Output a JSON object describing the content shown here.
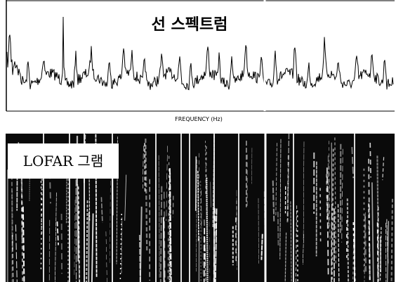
{
  "top_panel": {
    "title": "선 스펙트럼",
    "axis_label": "FREQUENCY (Hz)"
  },
  "bottom_panel": {
    "title": "LOFAR 그램"
  }
}
